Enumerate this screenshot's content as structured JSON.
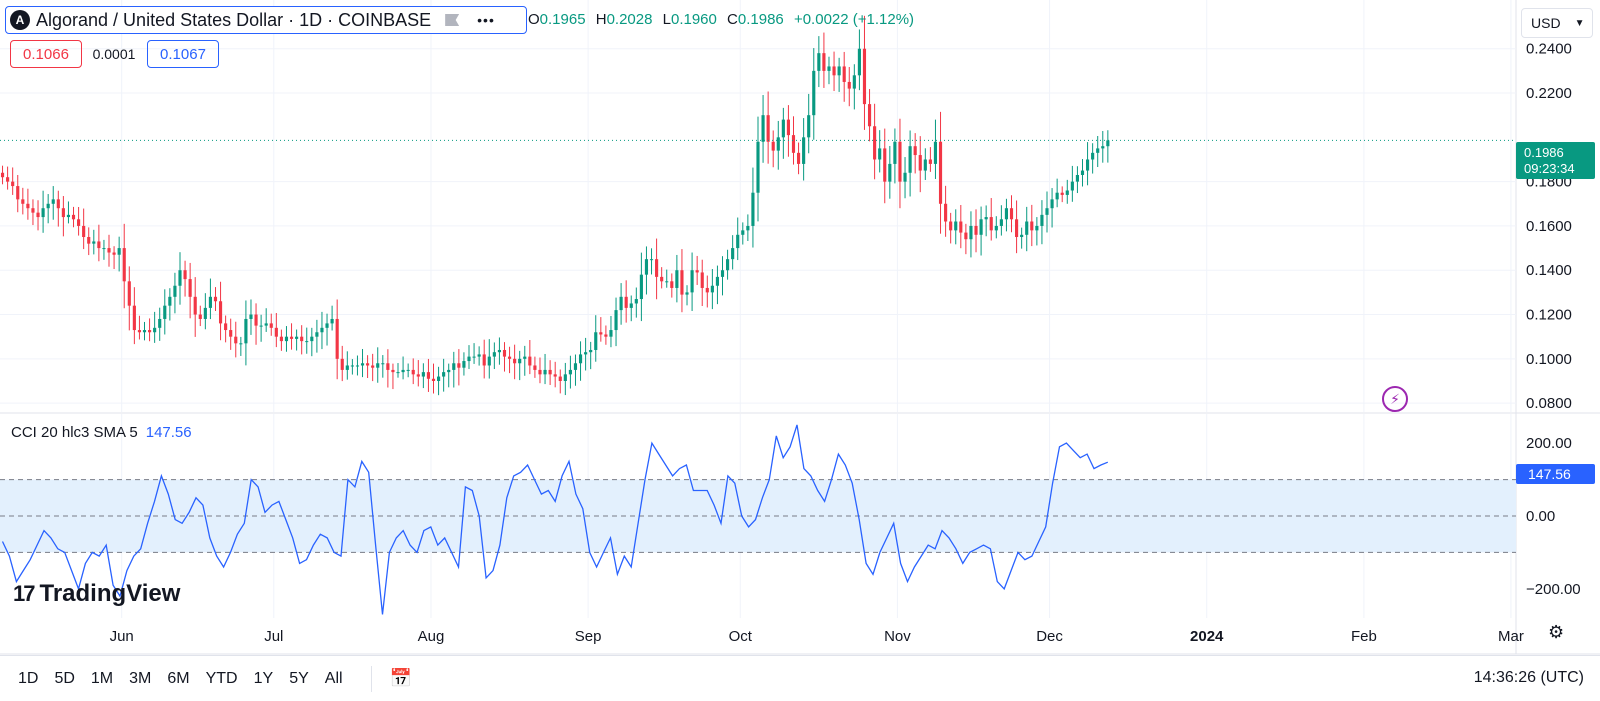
{
  "header": {
    "symbol_title": "Algorand / United States Dollar · 1D · COINBASE",
    "logo_letter": "A",
    "more_icon": "more-dots-icon",
    "flag_icon": "flag-icon",
    "ohlc": {
      "o_label": "O",
      "o_value": "0.1965",
      "h_label": "H",
      "h_value": "0.2028",
      "l_label": "L",
      "l_value": "0.1960",
      "c_label": "C",
      "c_value": "0.1986",
      "change": "+0.0022 (+1.12%)"
    },
    "bid": "0.1066",
    "spread": "0.0001",
    "ask": "0.1067",
    "currency": "USD"
  },
  "last_price": {
    "price": "0.1986",
    "countdown": "09:23:34"
  },
  "cci": {
    "legend": "CCI 20 hlc3 SMA 5",
    "value": "147.56"
  },
  "watermark": "TradingView",
  "bottom_bar": {
    "ranges": [
      "1D",
      "5D",
      "1M",
      "3M",
      "6M",
      "YTD",
      "1Y",
      "5Y",
      "All"
    ],
    "clock": "14:36:26 (UTC)"
  },
  "colors": {
    "up": "#089981",
    "down": "#f23645",
    "cci_line": "#2962ff",
    "cci_band": "#e3f0fd"
  },
  "chart_data": [
    {
      "type": "candlestick",
      "title": "Algorand / United States Dollar · 1D · COINBASE",
      "ylim": [
        0.076,
        0.262
      ],
      "y_ticks": [
        "0.2400",
        "0.2200",
        "0.1800",
        "0.1600",
        "0.1400",
        "0.1200",
        "0.1000",
        "0.0800"
      ],
      "x_ticks": [
        "Jun",
        "Jul",
        "Aug",
        "Sep",
        "Oct",
        "Nov",
        "Dec",
        "2024",
        "Feb",
        "Mar"
      ],
      "x_start": "2023-05-08",
      "x_end": "2024-03-02",
      "close": [
        0.182,
        0.18,
        0.178,
        0.172,
        0.17,
        0.168,
        0.166,
        0.164,
        0.168,
        0.17,
        0.172,
        0.168,
        0.164,
        0.165,
        0.163,
        0.16,
        0.155,
        0.152,
        0.153,
        0.15,
        0.15,
        0.148,
        0.147,
        0.15,
        0.135,
        0.124,
        0.113,
        0.112,
        0.113,
        0.112,
        0.114,
        0.118,
        0.124,
        0.128,
        0.133,
        0.14,
        0.136,
        0.128,
        0.12,
        0.118,
        0.123,
        0.128,
        0.126,
        0.116,
        0.113,
        0.11,
        0.107,
        0.107,
        0.118,
        0.12,
        0.115,
        0.115,
        0.116,
        0.114,
        0.11,
        0.108,
        0.11,
        0.109,
        0.11,
        0.108,
        0.108,
        0.11,
        0.112,
        0.114,
        0.116,
        0.118,
        0.1,
        0.095,
        0.097,
        0.097,
        0.097,
        0.098,
        0.097,
        0.096,
        0.098,
        0.098,
        0.095,
        0.094,
        0.094,
        0.095,
        0.095,
        0.093,
        0.092,
        0.094,
        0.091,
        0.09,
        0.092,
        0.094,
        0.095,
        0.098,
        0.096,
        0.099,
        0.101,
        0.101,
        0.102,
        0.097,
        0.101,
        0.103,
        0.104,
        0.101,
        0.1,
        0.098,
        0.1,
        0.101,
        0.097,
        0.095,
        0.093,
        0.095,
        0.093,
        0.092,
        0.09,
        0.093,
        0.095,
        0.098,
        0.102,
        0.103,
        0.104,
        0.112,
        0.111,
        0.11,
        0.113,
        0.122,
        0.128,
        0.123,
        0.125,
        0.127,
        0.138,
        0.145,
        0.145,
        0.137,
        0.135,
        0.135,
        0.132,
        0.14,
        0.129,
        0.13,
        0.14,
        0.139,
        0.132,
        0.13,
        0.133,
        0.137,
        0.14,
        0.145,
        0.15,
        0.156,
        0.158,
        0.16,
        0.175,
        0.198,
        0.21,
        0.198,
        0.194,
        0.2,
        0.208,
        0.201,
        0.193,
        0.188,
        0.2,
        0.21,
        0.23,
        0.238,
        0.23,
        0.232,
        0.228,
        0.232,
        0.225,
        0.222,
        0.228,
        0.24,
        0.215,
        0.205,
        0.19,
        0.195,
        0.18,
        0.188,
        0.198,
        0.18,
        0.184,
        0.196,
        0.192,
        0.185,
        0.19,
        0.188,
        0.198,
        0.17,
        0.162,
        0.158,
        0.162,
        0.157,
        0.154,
        0.16,
        0.156,
        0.163,
        0.164,
        0.158,
        0.16,
        0.163,
        0.168,
        0.163,
        0.155,
        0.156,
        0.162,
        0.158,
        0.16,
        0.165,
        0.168,
        0.172,
        0.175,
        0.174,
        0.176,
        0.18,
        0.183,
        0.185,
        0.19,
        0.193,
        0.195,
        0.196,
        0.1986
      ]
    },
    {
      "type": "line",
      "title": "CCI 20 hlc3 SMA 5",
      "ylim": [
        -280,
        280
      ],
      "y_ticks": [
        "200.00",
        "0.00",
        "−200.00"
      ],
      "band": [
        -100,
        100
      ],
      "last_value": 147.56,
      "values": [
        -70,
        -110,
        -180,
        -150,
        -120,
        -80,
        -40,
        -60,
        -90,
        -100,
        -150,
        -200,
        -130,
        -100,
        -110,
        -80,
        -190,
        -220,
        -150,
        -110,
        -90,
        -20,
        40,
        110,
        60,
        -10,
        -20,
        10,
        50,
        30,
        -60,
        -110,
        -140,
        -100,
        -50,
        -20,
        100,
        80,
        10,
        30,
        40,
        -10,
        -60,
        -130,
        -120,
        -80,
        -50,
        -60,
        -100,
        -110,
        100,
        80,
        150,
        120,
        -80,
        -270,
        -100,
        -60,
        -40,
        -80,
        -100,
        -40,
        -30,
        -80,
        -60,
        -100,
        -140,
        80,
        70,
        0,
        -170,
        -150,
        -80,
        50,
        110,
        120,
        140,
        100,
        60,
        70,
        40,
        110,
        150,
        60,
        20,
        -100,
        -140,
        -100,
        -60,
        -160,
        -110,
        -140,
        -20,
        100,
        200,
        170,
        140,
        110,
        130,
        140,
        70,
        70,
        70,
        30,
        -20,
        110,
        90,
        0,
        -30,
        -10,
        50,
        100,
        220,
        160,
        190,
        250,
        130,
        110,
        70,
        40,
        100,
        170,
        140,
        90,
        -10,
        -130,
        -160,
        -100,
        -60,
        -20,
        -130,
        -180,
        -140,
        -110,
        -80,
        -90,
        -40,
        -60,
        -90,
        -130,
        -100,
        -90,
        -80,
        -90,
        -180,
        -200,
        -150,
        -100,
        -120,
        -110,
        -70,
        -30,
        90,
        190,
        200,
        180,
        160,
        170,
        130,
        140,
        147.56
      ]
    }
  ]
}
